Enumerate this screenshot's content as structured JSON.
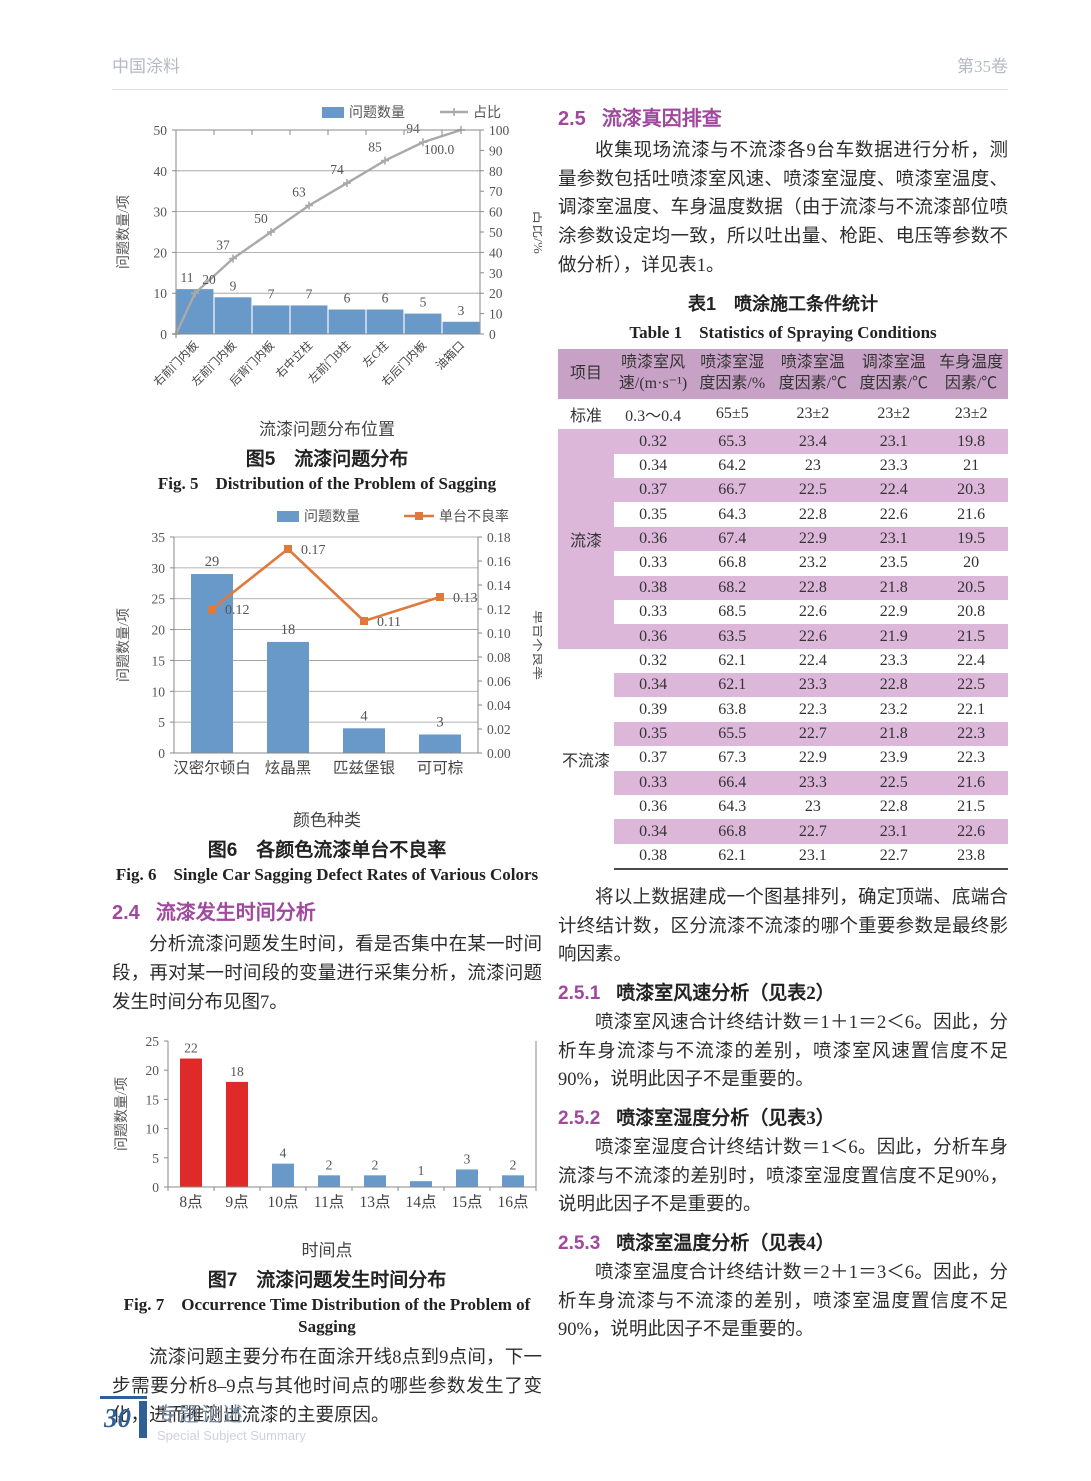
{
  "page": {
    "journal": "中国涂料",
    "volume": "第35卷",
    "footer": {
      "page_number": "30",
      "section_cn": "专题论述",
      "section_en": "Special Subject Summary"
    }
  },
  "colors": {
    "bar_blue": "#6899c8",
    "pareto_line_gray": "#a9a9a9",
    "defect_line_orange": "#e0793c",
    "highlight_red": "#e02a2a",
    "heading_purple": "#a0489e",
    "table_header_plum": "#c8a2c6",
    "table_stripe_pink": "#dcb7da",
    "footer_blue": "#2e5f96"
  },
  "left": {
    "section_2_4": {
      "number": "2.4",
      "title": "流漆发生时间分析",
      "body": "分析流漆问题发生时间，看是否集中在某一时间段，再对某一时间段的变量进行采集分析，流漆问题发生时间分布见图7。"
    },
    "closing_paragraph": "流漆问题主要分布在面涂开线8点到9点间，下一步需要分析8–9点与其他时间点的哪些参数发生了变化，进而推测出流漆的主要原因。"
  },
  "right": {
    "section_2_5": {
      "number": "2.5",
      "title": "流漆真因排查",
      "body": "收集现场流漆与不流漆各9台车数据进行分析，测量参数包括吐喷漆室风速、喷漆室湿度、喷漆室温度、调漆室温度、车身温度数据（由于流漆与不流漆部位喷涂参数设定均一致，所以吐出量、枪距、电压等参数不做分析），详见表1。"
    },
    "table1": {
      "caption_cn": "表1　喷涂施工条件统计",
      "caption_en": "Table 1　Statistics of Spraying Conditions",
      "headers": [
        "项目",
        "喷漆室风速/(m·s⁻¹)",
        "喷漆室湿度因素/%",
        "喷漆室温度因素/℃",
        "调漆室温度因素/℃",
        "车身温度因素/℃"
      ],
      "standard_row": [
        "标准",
        "0.3～0.4",
        "65±5",
        "23±2",
        "23±2",
        "23±2"
      ],
      "groups": [
        {
          "label": "流漆",
          "rows": [
            [
              "0.32",
              "65.3",
              "23.4",
              "23.1",
              "19.8"
            ],
            [
              "0.34",
              "64.2",
              "23",
              "23.3",
              "21"
            ],
            [
              "0.37",
              "66.7",
              "22.5",
              "22.4",
              "20.3"
            ],
            [
              "0.35",
              "64.3",
              "22.8",
              "22.6",
              "21.6"
            ],
            [
              "0.36",
              "67.4",
              "22.9",
              "23.1",
              "19.5"
            ],
            [
              "0.33",
              "66.8",
              "23.2",
              "23.5",
              "20"
            ],
            [
              "0.38",
              "68.2",
              "22.8",
              "21.8",
              "20.5"
            ],
            [
              "0.33",
              "68.5",
              "22.6",
              "22.9",
              "20.8"
            ],
            [
              "0.36",
              "63.5",
              "22.6",
              "21.9",
              "21.5"
            ]
          ]
        },
        {
          "label": "不流漆",
          "rows": [
            [
              "0.32",
              "62.1",
              "22.4",
              "23.3",
              "22.4"
            ],
            [
              "0.34",
              "62.1",
              "23.3",
              "22.8",
              "22.5"
            ],
            [
              "0.39",
              "63.8",
              "22.3",
              "23.2",
              "22.1"
            ],
            [
              "0.35",
              "65.5",
              "22.7",
              "21.8",
              "22.3"
            ],
            [
              "0.37",
              "67.3",
              "22.9",
              "23.9",
              "22.3"
            ],
            [
              "0.33",
              "66.4",
              "23.3",
              "22.5",
              "21.6"
            ],
            [
              "0.36",
              "64.3",
              "23",
              "22.8",
              "21.5"
            ],
            [
              "0.34",
              "66.8",
              "22.7",
              "23.1",
              "22.6"
            ],
            [
              "0.38",
              "62.1",
              "23.1",
              "22.7",
              "23.8"
            ]
          ]
        }
      ]
    },
    "paragraph_after_table": "将以上数据建成一个图基排列，确定顶端、底端合计终结计数，区分流漆不流漆的哪个重要参数是最终影响因素。",
    "section_2_5_1": {
      "number": "2.5.1",
      "title": "喷漆室风速分析（见表2）",
      "body": "喷漆室风速合计终结计数＝1＋1＝2＜6。因此，分析车身流漆与不流漆的差别，喷漆室风速置信度不足90%，说明此因子不是重要的。"
    },
    "section_2_5_2": {
      "number": "2.5.2",
      "title": "喷漆室湿度分析（见表3）",
      "body": "喷漆室湿度合计终结计数＝1＜6。因此，分析车身流漆与不流漆的差别时，喷漆室湿度置信度不足90%，说明此因子不是重要的。"
    },
    "section_2_5_3": {
      "number": "2.5.3",
      "title": "喷漆室温度分析（见表4）",
      "body": "喷漆室温度合计终结计数＝2＋1＝3＜6。因此，分析车身流漆与不流漆的差别，喷漆室温度置信度不足90%，说明此因子不是重要的。"
    }
  },
  "chart_data": [
    {
      "id": "fig5",
      "type": "bar",
      "subtype": "pareto-combo",
      "categories": [
        "右前门内板",
        "左前门内板",
        "后背门内板",
        "右中立柱",
        "左前门B柱",
        "左C柱",
        "右后门内板",
        "油箱口"
      ],
      "series": [
        {
          "name": "问题数量",
          "type": "bar",
          "values": [
            11,
            9,
            7,
            7,
            6,
            6,
            5,
            3
          ]
        },
        {
          "name": "占比",
          "type": "line",
          "values": [
            20,
            37,
            50,
            63,
            74,
            85,
            94,
            100
          ]
        }
      ],
      "line_labels": [
        "20",
        "37",
        "50",
        "63",
        "74",
        "85",
        "94",
        "100.0"
      ],
      "left_axis": {
        "label": "问题数量/项",
        "min": 0,
        "max": 50,
        "step": 10
      },
      "right_axis": {
        "label": "占比/%",
        "min": 0,
        "max": 100,
        "step": 10
      },
      "legend": [
        "问题数量",
        "占比"
      ],
      "legend_position": "top-right",
      "grid": true,
      "xlabel": "流漆问题分布位置",
      "caption_cn": "图5　流漆问题分布",
      "caption_en": "Fig. 5　Distribution of the Problem of Sagging"
    },
    {
      "id": "fig6",
      "type": "bar",
      "subtype": "bar-line-combo",
      "categories": [
        "汉密尔顿白",
        "炫晶黑",
        "匹兹堡银",
        "可可棕"
      ],
      "series": [
        {
          "name": "问题数量",
          "type": "bar",
          "values": [
            29,
            18,
            4,
            3
          ]
        },
        {
          "name": "单台不良率",
          "type": "line",
          "values": [
            0.12,
            0.17,
            0.11,
            0.13
          ]
        }
      ],
      "line_labels": [
        "0.12",
        "0.17",
        "0.11",
        "0.13"
      ],
      "left_axis": {
        "label": "问题数量/项",
        "min": 0,
        "max": 35,
        "step": 5
      },
      "right_axis": {
        "label": "单台不良率",
        "min": 0,
        "max": 0.18,
        "step": 0.02
      },
      "legend": [
        "问题数量",
        "单台不良率"
      ],
      "legend_position": "top-right",
      "grid": true,
      "xlabel": "颜色种类",
      "caption_cn": "图6　各颜色流漆单台不良率",
      "caption_en": "Fig. 6　Single Car Sagging Defect Rates of Various Colors"
    },
    {
      "id": "fig7",
      "type": "bar",
      "categories": [
        "8点",
        "9点",
        "10点",
        "11点",
        "13点",
        "14点",
        "15点",
        "16点"
      ],
      "values": [
        22,
        18,
        4,
        2,
        2,
        1,
        3,
        2
      ],
      "highlight_red_count": 2,
      "y_axis": {
        "label": "问题数量/项",
        "min": 0,
        "max": 25,
        "step": 5
      },
      "grid": false,
      "xlabel": "时间点",
      "caption_cn": "图7　流漆问题发生时间分布",
      "caption_en": "Fig. 7　Occurrence Time Distribution of the Problem of Sagging"
    }
  ]
}
